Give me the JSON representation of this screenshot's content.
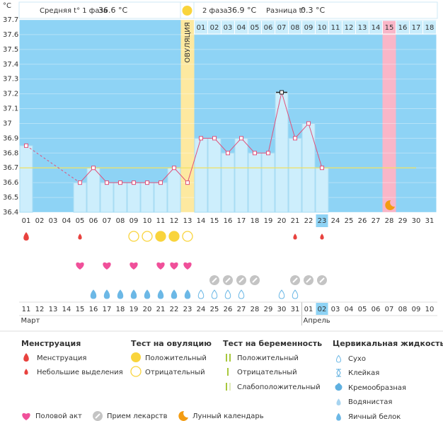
{
  "header": {
    "phase1_label": "Средняя t° 1 фаза",
    "phase1_value": "36.6 °C",
    "phase2_label": "2 фаза",
    "phase2_value": "36.9 °C",
    "diff_label": "Разница t°",
    "diff_value": "0.3 °C"
  },
  "chart_data": {
    "type": "line",
    "y_unit": "°C",
    "ylim": [
      36.4,
      37.7
    ],
    "yticks": [
      36.4,
      36.5,
      36.6,
      36.7,
      36.8,
      36.9,
      37,
      37.1,
      37.2,
      37.3,
      37.4,
      37.5,
      37.6,
      37.7
    ],
    "categories": [
      "01",
      "02",
      "03",
      "04",
      "05",
      "06",
      "07",
      "08",
      "09",
      "10",
      "11",
      "12",
      "13",
      "14",
      "15",
      "16",
      "17",
      "18",
      "19",
      "20",
      "21",
      "22",
      "23",
      "24",
      "25",
      "26",
      "27",
      "28",
      "29",
      "30",
      "31"
    ],
    "values": [
      36.85,
      null,
      null,
      null,
      36.6,
      36.7,
      36.6,
      36.6,
      36.6,
      36.6,
      36.6,
      36.7,
      36.6,
      36.9,
      36.9,
      36.8,
      36.9,
      36.8,
      36.8,
      37.21,
      36.9,
      37,
      36.7,
      null,
      null,
      null,
      null,
      null,
      null,
      null,
      null
    ],
    "line_color": "#e0507a",
    "bar_color": "#cdeefc",
    "background_color": "#8ed3f5",
    "cover_line": 36.7,
    "cover_line_color": "#f0e060",
    "ovulation_label": "ОВУЛЯЦИЯ",
    "ovulation_day": "13",
    "today": "23",
    "moon_day": "28",
    "phase2_days": [
      "01",
      "02",
      "03",
      "04",
      "05",
      "06",
      "07",
      "08",
      "09",
      "10",
      "11",
      "12",
      "13",
      "14",
      "15",
      "16",
      "17",
      "18"
    ],
    "dates": [
      "11",
      "12",
      "13",
      "14",
      "15",
      "16",
      "17",
      "18",
      "19",
      "20",
      "21",
      "22",
      "23",
      "24",
      "25",
      "26",
      "27",
      "28",
      "29",
      "30",
      "31",
      "01",
      "02",
      "03",
      "04",
      "05",
      "06",
      "07",
      "08",
      "09",
      "10"
    ],
    "date_weekend": [
      false,
      false,
      false,
      false,
      false,
      true,
      true,
      false,
      false,
      false,
      false,
      false,
      true,
      true,
      false,
      false,
      false,
      false,
      false,
      true,
      true,
      false,
      false,
      false,
      false,
      false,
      true,
      true,
      false,
      false,
      false
    ],
    "date_today": "02",
    "months": [
      "Март",
      "Апрель"
    ],
    "month_starts": [
      0,
      21
    ],
    "menstruation": [
      "heavy",
      null,
      null,
      null,
      "light",
      null,
      null,
      null,
      null,
      null,
      null,
      null,
      null,
      null,
      null,
      null,
      null,
      null,
      null,
      null,
      "light",
      null,
      "light",
      null,
      null,
      null,
      null,
      null,
      null,
      null,
      null
    ],
    "ovulation_test": [
      null,
      null,
      null,
      null,
      null,
      null,
      null,
      null,
      "negative",
      "negative",
      "positive",
      "positive",
      "negative",
      null,
      null,
      null,
      null,
      null,
      null,
      null,
      null,
      null,
      null,
      null,
      null,
      null,
      null,
      null,
      null,
      null,
      null
    ],
    "sex": [
      false,
      false,
      false,
      false,
      true,
      false,
      true,
      false,
      true,
      false,
      true,
      true,
      true,
      false,
      false,
      false,
      false,
      false,
      false,
      false,
      false,
      false,
      false,
      false,
      false,
      false,
      false,
      false,
      false,
      false,
      false
    ],
    "medication": [
      false,
      false,
      false,
      false,
      false,
      false,
      false,
      false,
      false,
      false,
      false,
      false,
      false,
      false,
      true,
      true,
      true,
      true,
      false,
      false,
      true,
      true,
      true,
      false,
      false,
      false,
      false,
      false,
      false,
      false,
      false
    ],
    "cervical": [
      null,
      null,
      null,
      null,
      null,
      "egg_white",
      "egg_white",
      "egg_white",
      "egg_white",
      "egg_white",
      "egg_white",
      "egg_white",
      "egg_white",
      "dry",
      "dry",
      "dry",
      "dry",
      null,
      null,
      "dry",
      "dry",
      null,
      null,
      null,
      null,
      null,
      null,
      null,
      null,
      null,
      null
    ]
  },
  "legend": {
    "menstruation": {
      "title": "Менструация",
      "items": [
        "Менструация",
        "Небольшие выделения"
      ]
    },
    "ovulation_test": {
      "title": "Тест на овуляцию",
      "items": [
        "Положительный",
        "Отрицательный"
      ]
    },
    "pregnancy_test": {
      "title": "Тест на беременность",
      "items": [
        "Положительный",
        "Отрицательный",
        "Слабоположительный"
      ]
    },
    "cervical": {
      "title": "Цервикальная жидкость",
      "items": [
        "Сухо",
        "Клейкая",
        "Кремообразная",
        "Водянистая",
        "Яичный белок"
      ]
    },
    "other": [
      "Половой акт",
      "Прием лекарств",
      "Лунный календарь"
    ]
  }
}
